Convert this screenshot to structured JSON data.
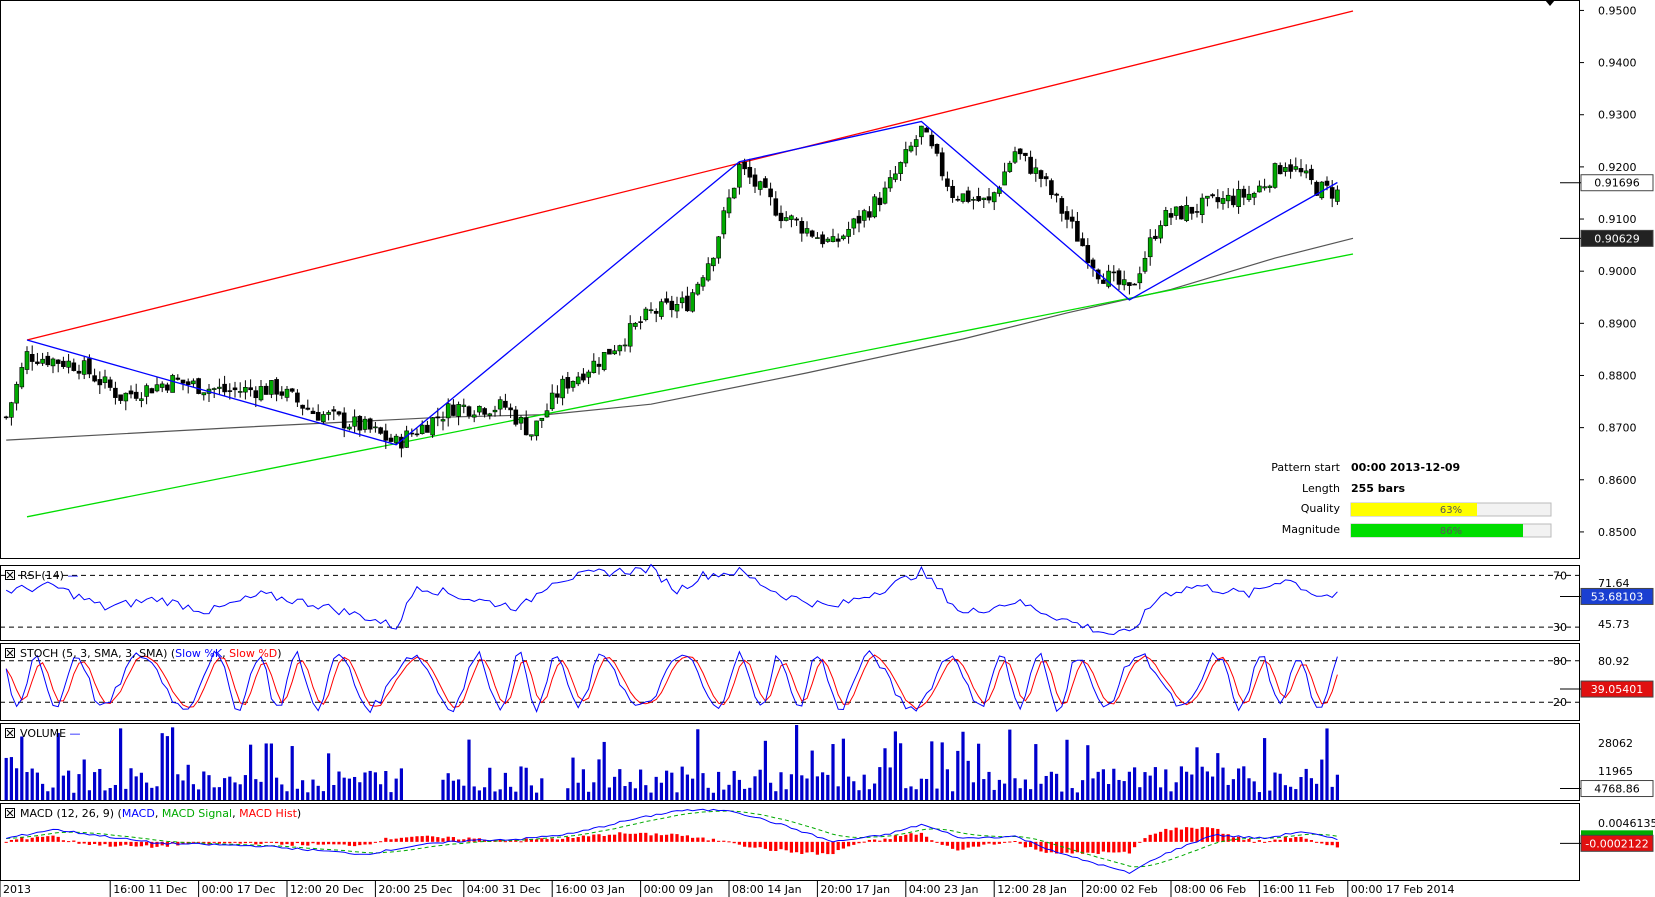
{
  "chart_data": [
    {
      "type": "candlestick",
      "panel": "price",
      "title": "",
      "ylim": [
        0.845,
        0.952
      ],
      "y_ticks": [
        "0.9500",
        "0.9400",
        "0.9300",
        "0.9200",
        "0.9100",
        "0.9000",
        "0.8900",
        "0.8800",
        "0.8700",
        "0.8600",
        "0.8500"
      ],
      "y_tick_values": [
        0.95,
        0.94,
        0.93,
        0.92,
        0.91,
        0.9,
        0.89,
        0.88,
        0.87,
        0.86,
        0.85
      ],
      "last_price_label": "0.91696",
      "last_price": 0.91696,
      "ma_label": "0.90629",
      "ma_value": 0.90629,
      "bars": 255,
      "pattern": {
        "resistance_line": [
          [
            0,
            0.8868
          ],
          [
            255,
            0.9499
          ]
        ],
        "support_line": [
          [
            0,
            0.8529
          ],
          [
            255,
            0.9033
          ]
        ],
        "zigzag": [
          [
            0,
            0.8868
          ],
          [
            71,
            0.8667
          ],
          [
            137,
            0.921
          ],
          [
            172,
            0.9287
          ],
          [
            212,
            0.8945
          ],
          [
            252,
            0.917
          ]
        ]
      },
      "moving_average": [
        [
          -4,
          0.8676
        ],
        [
          40,
          0.87
        ],
        [
          80,
          0.872
        ],
        [
          100,
          0.8725
        ],
        [
          120,
          0.8745
        ],
        [
          150,
          0.8805
        ],
        [
          180,
          0.887
        ],
        [
          200,
          0.892
        ],
        [
          220,
          0.8965
        ],
        [
          240,
          0.9025
        ],
        [
          255,
          0.9063
        ]
      ],
      "candle_anchors": [
        [
          -4,
          0.872
        ],
        [
          0,
          0.884
        ],
        [
          10,
          0.882
        ],
        [
          18,
          0.876
        ],
        [
          28,
          0.879
        ],
        [
          38,
          0.877
        ],
        [
          48,
          0.8775
        ],
        [
          55,
          0.873
        ],
        [
          65,
          0.87
        ],
        [
          71,
          0.867
        ],
        [
          82,
          0.874
        ],
        [
          92,
          0.874
        ],
        [
          97,
          0.869
        ],
        [
          103,
          0.878
        ],
        [
          110,
          0.883
        ],
        [
          120,
          0.892
        ],
        [
          127,
          0.894
        ],
        [
          132,
          0.904
        ],
        [
          137,
          0.92
        ],
        [
          145,
          0.911
        ],
        [
          155,
          0.905
        ],
        [
          165,
          0.915
        ],
        [
          172,
          0.927
        ],
        [
          178,
          0.915
        ],
        [
          185,
          0.913
        ],
        [
          190,
          0.923
        ],
        [
          195,
          0.918
        ],
        [
          200,
          0.91
        ],
        [
          206,
          0.9
        ],
        [
          212,
          0.896
        ],
        [
          218,
          0.91
        ],
        [
          228,
          0.913
        ],
        [
          236,
          0.915
        ],
        [
          242,
          0.921
        ],
        [
          248,
          0.916
        ],
        [
          252,
          0.915
        ]
      ],
      "time_labels": [
        "2013",
        "16:00 11 Dec",
        "00:00 17 Dec",
        "12:00 20 Dec",
        "20:00 25 Dec",
        "04:00 31 Dec",
        "16:00 03 Jan",
        "00:00 09 Jan",
        "08:00 14 Jan",
        "20:00 17 Jan",
        "04:00 23 Jan",
        "12:00 28 Jan",
        "20:00 02 Feb",
        "08:00 06 Feb",
        "16:00 11 Feb",
        "00:00 17 Feb 2014"
      ],
      "time_label_bars": [
        -4,
        16,
        33,
        50,
        67,
        84,
        101,
        118,
        135,
        152,
        169,
        186,
        203,
        220,
        237,
        254
      ]
    },
    {
      "type": "line",
      "panel": "rsi",
      "legend": "RSI (14)",
      "levels": [
        70,
        30
      ],
      "level_labels": [
        "70",
        "30"
      ],
      "axis_labels": [
        "71.64",
        "45.73"
      ],
      "last_value_label": "53.68103",
      "last_value": 53.68,
      "ylim": [
        20,
        78
      ],
      "anchors": [
        [
          -4,
          58
        ],
        [
          5,
          62
        ],
        [
          15,
          45
        ],
        [
          25,
          52
        ],
        [
          35,
          42
        ],
        [
          45,
          55
        ],
        [
          55,
          48
        ],
        [
          65,
          38
        ],
        [
          71,
          30
        ],
        [
          75,
          62
        ],
        [
          85,
          52
        ],
        [
          95,
          45
        ],
        [
          101,
          66
        ],
        [
          110,
          72
        ],
        [
          120,
          75
        ],
        [
          125,
          58
        ],
        [
          130,
          70
        ],
        [
          137,
          73
        ],
        [
          145,
          55
        ],
        [
          155,
          45
        ],
        [
          165,
          60
        ],
        [
          172,
          73
        ],
        [
          180,
          40
        ],
        [
          190,
          50
        ],
        [
          200,
          35
        ],
        [
          208,
          25
        ],
        [
          212,
          25
        ],
        [
          218,
          55
        ],
        [
          225,
          62
        ],
        [
          235,
          55
        ],
        [
          242,
          68
        ],
        [
          248,
          55
        ],
        [
          255,
          53
        ]
      ]
    },
    {
      "type": "line",
      "panel": "stochastic",
      "legend": "STOCH (5, 3, SMA, 3, SMA)",
      "series": [
        {
          "name": "Slow %K",
          "color": "#0000ff"
        },
        {
          "name": "Slow %D",
          "color": "#ff0000"
        }
      ],
      "levels": [
        80,
        20
      ],
      "level_labels": [
        "80",
        "20"
      ],
      "axis_labels": [
        "80.92"
      ],
      "last_value_label": "39.05401",
      "last_value": 39.05,
      "ylim": [
        0,
        100
      ]
    },
    {
      "type": "bar",
      "panel": "volume",
      "legend": "VOLUME",
      "axis_labels": [
        "28062",
        "11965"
      ],
      "last_value_label": "4768.86",
      "last_value": 4768.86,
      "ylim": [
        0,
        32000
      ]
    },
    {
      "type": "line",
      "panel": "macd",
      "legend": "MACD (12, 26, 9)",
      "series": [
        {
          "name": "MACD",
          "color": "#0000ff"
        },
        {
          "name": "MACD Signal",
          "color": "#00aa00"
        },
        {
          "name": "MACD Hist",
          "color": "#ff0000"
        }
      ],
      "axis_labels": [
        "0.0046135"
      ],
      "last_value_label": "-0.0002122",
      "last_value": -0.0002122,
      "ylim": [
        -0.0055,
        0.0056
      ],
      "anchors": [
        [
          -4,
          0.0005
        ],
        [
          5,
          0.0018
        ],
        [
          15,
          0.0008
        ],
        [
          25,
          -0.0002
        ],
        [
          35,
          -0.0004
        ],
        [
          45,
          -0.0006
        ],
        [
          55,
          -0.0012
        ],
        [
          65,
          -0.0018
        ],
        [
          75,
          -0.0005
        ],
        [
          85,
          0.0002
        ],
        [
          95,
          0.0004
        ],
        [
          105,
          0.0012
        ],
        [
          115,
          0.003
        ],
        [
          125,
          0.0045
        ],
        [
          135,
          0.0046
        ],
        [
          145,
          0.0025
        ],
        [
          155,
          0.0
        ],
        [
          165,
          0.001
        ],
        [
          172,
          0.0025
        ],
        [
          180,
          0.0005
        ],
        [
          190,
          0.0008
        ],
        [
          200,
          -0.002
        ],
        [
          205,
          -0.003
        ],
        [
          212,
          -0.0045
        ],
        [
          218,
          -0.002
        ],
        [
          228,
          0.001
        ],
        [
          238,
          0.0005
        ],
        [
          245,
          0.0015
        ],
        [
          255,
          -0.0002
        ]
      ]
    }
  ],
  "pattern_info": {
    "start_label": "Pattern start",
    "start_value": "00:00 2013-12-09",
    "length_label": "Length",
    "length_value": "255 bars",
    "quality_label": "Quality",
    "quality_value": "63%",
    "quality": 0.63,
    "magnitude_label": "Magnitude",
    "magnitude_value": "86%",
    "magnitude": 0.86
  },
  "colors": {
    "resistance": "#ff0000",
    "support": "#00dd00",
    "zigzag": "#0000ff",
    "moving_average": "#555555",
    "candle_up": "#00aa00",
    "candle_down": "#000000",
    "volume": "#0000cc",
    "quality_bar": "#ffff00",
    "magnitude_bar": "#00dd00"
  }
}
